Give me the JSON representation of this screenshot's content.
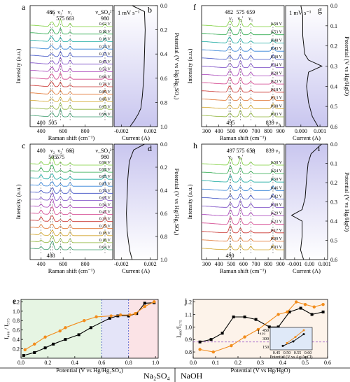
{
  "solutions": {
    "left": "Na₂SO₄",
    "right": "NaOH"
  },
  "panel_letters": [
    "a",
    "b",
    "c",
    "d",
    "e",
    "f",
    "g",
    "h",
    "i",
    "j"
  ],
  "chart_data": [
    {
      "panel": "a",
      "type": "line",
      "xlabel": "Raman shift (cm⁻¹)",
      "ylabel": "Intensity (a.u.)",
      "xticks": [
        400,
        600,
        800
      ],
      "xlim": [
        300,
        1050
      ],
      "band_labels": [
        {
          "text": "486",
          "x": 486,
          "pos": "top"
        },
        {
          "text": "ν₂",
          "x": 505,
          "pos": "top"
        },
        {
          "text": "ν₂'",
          "x": 575,
          "pos": "top"
        },
        {
          "text": "575",
          "x": 575,
          "pos": "top2"
        },
        {
          "text": "ν₁",
          "x": 663,
          "pos": "top"
        },
        {
          "text": "663",
          "x": 663,
          "pos": "top2"
        },
        {
          "text": "ν_SO₄²⁻",
          "x": 980,
          "pos": "top"
        },
        {
          "text": "980",
          "x": 980,
          "pos": "top2"
        },
        {
          "text": "400",
          "x": 400,
          "pos": "bottom"
        },
        {
          "text": "505",
          "x": 505,
          "pos": "bottom"
        }
      ],
      "potentials": [
        "0.02 V",
        "0.10 V",
        "0.18 V",
        "0.24 V",
        "0.33 V",
        "0.43 V",
        "0.52 V",
        "0.66 V",
        "0.72 V",
        "0.80 V",
        "0.86 V",
        "0.92 V",
        "0.99 V"
      ],
      "peaks": [
        486,
        505,
        575,
        663,
        980
      ]
    },
    {
      "panel": "b",
      "type": "line",
      "xlabel": "Current (A)",
      "ylabel": "Potential (V vs Hg/Hg₂SO₄)",
      "annotation": "1 mV s⁻¹",
      "xticks": [
        -0.002,
        0.002
      ],
      "xtick_labels": [
        "-0.002",
        "0.002"
      ],
      "yticks": [
        0.0,
        0.2,
        0.4,
        0.6,
        0.8,
        1.0
      ],
      "ytick_labels": [
        "0.0",
        "0.2",
        "0.4",
        "0.6",
        "0.8",
        "1.0"
      ],
      "xlim": [
        -0.003,
        0.003
      ],
      "ylim": [
        0.0,
        1.0
      ],
      "y_inverted": true,
      "x": [
        -0.0005,
        0.0012,
        0.0013,
        0.0012,
        0.0011,
        0.0009,
        0.0007,
        0.0003,
        -0.0002,
        -0.0008
      ],
      "y": [
        0.0,
        0.05,
        0.2,
        0.4,
        0.6,
        0.75,
        0.85,
        0.9,
        0.95,
        1.0
      ]
    },
    {
      "panel": "c",
      "type": "line",
      "xlabel": "Raman shift (cm⁻¹)",
      "ylabel": "Intensity (a.u.)",
      "xticks": [
        400,
        600,
        800
      ],
      "xlim": [
        300,
        1050
      ],
      "band_labels": [
        {
          "text": "400",
          "x": 400,
          "pos": "top"
        },
        {
          "text": "ν₂",
          "x": 505,
          "pos": "top"
        },
        {
          "text": "505",
          "x": 505,
          "pos": "top2"
        },
        {
          "text": "ν₂'",
          "x": 575,
          "pos": "top"
        },
        {
          "text": "575",
          "x": 575,
          "pos": "top2"
        },
        {
          "text": "663",
          "x": 663,
          "pos": "top"
        },
        {
          "text": "ν₁",
          "x": 680,
          "pos": "top"
        },
        {
          "text": "ν_SO₄²⁻",
          "x": 980,
          "pos": "top"
        },
        {
          "text": "980",
          "x": 980,
          "pos": "top2"
        },
        {
          "text": "488",
          "x": 488,
          "pos": "bottom"
        }
      ],
      "potentials": [
        "0.99 V",
        "0.92 V",
        "0.85 V",
        "0.81 V",
        "0.74 V",
        "0.67 V",
        "0.56 V",
        "0.47 V",
        "0.33 V",
        "0.29 V",
        "0.18 V",
        "0.10 V",
        "0.03 V"
      ],
      "peaks": [
        400,
        488,
        505,
        575,
        663,
        980
      ]
    },
    {
      "panel": "d",
      "type": "line",
      "xlabel": "Current (A)",
      "ylabel": "Potential (V vs Hg/Hg₂SO₄)",
      "xticks": [
        -0.002,
        0.002
      ],
      "xtick_labels": [
        "-0.002",
        "0.002"
      ],
      "yticks": [
        0.0,
        0.2,
        0.4,
        0.6,
        0.8,
        1.0
      ],
      "ytick_labels": [
        "0.0",
        "0.2",
        "0.4",
        "0.6",
        "0.8",
        "1.0"
      ],
      "xlim": [
        -0.003,
        0.003
      ],
      "ylim": [
        0.0,
        1.0
      ],
      "y_inverted": true,
      "x": [
        0.0012,
        -0.0003,
        -0.0009,
        -0.0011,
        -0.0012,
        -0.0013,
        -0.0012,
        -0.001,
        -0.0008,
        -0.0005
      ],
      "y": [
        0.0,
        0.05,
        0.15,
        0.3,
        0.45,
        0.6,
        0.75,
        0.85,
        0.93,
        1.0
      ]
    },
    {
      "panel": "e",
      "type": "line",
      "xlabel": "Potential (V vs Hg/Hg₂SO₄)",
      "ylabel": "I₄₈₀ / I₅₇₅",
      "xticks": [
        0.0,
        0.2,
        0.4,
        0.6,
        0.8,
        1.0
      ],
      "xtick_labels": [
        "0.0",
        "0.2",
        "0.4",
        "0.6",
        "0.8",
        "1.0"
      ],
      "yticks": [
        0.2,
        0.4,
        0.6,
        0.8,
        1.0,
        1.2
      ],
      "ytick_labels": [
        "0.2",
        "0.4",
        "0.6",
        "0.8",
        "1.0",
        "1.2"
      ],
      "xlim": [
        0.0,
        1.02
      ],
      "ylim": [
        0.0,
        1.25
      ],
      "regions": [
        {
          "from": 0.0,
          "to": 0.6,
          "color": "#e6f5e3"
        },
        {
          "from": 0.6,
          "to": 0.8,
          "color": "#e4e4f8"
        },
        {
          "from": 0.8,
          "to": 1.02,
          "color": "#fbe3e6"
        }
      ],
      "series": [
        {
          "color": "#000000",
          "x": [
            0.02,
            0.1,
            0.18,
            0.24,
            0.33,
            0.43,
            0.52,
            0.66,
            0.72,
            0.8,
            0.86,
            0.92,
            0.99
          ],
          "y": [
            0.06,
            0.12,
            0.22,
            0.3,
            0.4,
            0.5,
            0.65,
            0.85,
            0.9,
            0.9,
            0.95,
            1.17,
            1.18
          ]
        },
        {
          "color": "#f28c1b",
          "x": [
            0.99,
            0.92,
            0.85,
            0.81,
            0.74,
            0.67,
            0.56,
            0.47,
            0.33,
            0.29,
            0.18,
            0.1,
            0.03
          ],
          "y": [
            1.2,
            1.1,
            0.95,
            0.92,
            0.92,
            0.9,
            0.88,
            0.8,
            0.65,
            0.58,
            0.45,
            0.3,
            0.18
          ]
        }
      ]
    },
    {
      "panel": "f",
      "type": "line",
      "xlabel": "Raman shift (cm⁻¹)",
      "ylabel": "Intensity (a.u.)",
      "xticks": [
        300,
        400,
        500,
        600,
        700,
        800,
        900
      ],
      "xlim": [
        260,
        930
      ],
      "band_labels": [
        {
          "text": "482",
          "x": 482,
          "pos": "top"
        },
        {
          "text": "ν₂",
          "x": 500,
          "pos": "top2"
        },
        {
          "text": "ν₂'",
          "x": 575,
          "pos": "top2"
        },
        {
          "text": "575",
          "x": 575,
          "pos": "top"
        },
        {
          "text": "ν₁",
          "x": 659,
          "pos": "top2"
        },
        {
          "text": "659",
          "x": 659,
          "pos": "top"
        },
        {
          "text": "495",
          "x": 495,
          "pos": "bottom"
        },
        {
          "text": "839 ν₃",
          "x": 839,
          "pos": "bottom"
        }
      ],
      "potentials": [
        "0.58 V",
        "0.53 V",
        "0.48 V",
        "0.43 V",
        "0.38 V",
        "0.34 V",
        "0.28 V",
        "0.23 V",
        "0.18 V",
        "0.13 V",
        "0.08 V",
        "0.03 V"
      ],
      "peaks": [
        482,
        495,
        575,
        659,
        839
      ]
    },
    {
      "panel": "g",
      "type": "line",
      "xlabel": "Current (A)",
      "ylabel": "Potential (V vs Hg/HgO)",
      "annotation": "1 mV s⁻¹",
      "xticks": [
        0.0,
        0.001
      ],
      "xtick_labels": [
        "0.000",
        "0.001"
      ],
      "yticks": [
        0.0,
        0.1,
        0.2,
        0.3,
        0.4,
        0.5,
        0.6
      ],
      "ytick_labels": [
        "0.0",
        "0.1",
        "0.2",
        "0.3",
        "0.4",
        "0.5",
        "0.6"
      ],
      "xlim": [
        -0.0008,
        0.0014
      ],
      "ylim": [
        0.0,
        0.6
      ],
      "y_inverted": true,
      "x": [
        0.0,
        0.0001,
        0.0001,
        0.0002,
        0.0004,
        0.0011,
        0.0004,
        0.0003,
        0.0004,
        0.0006,
        0.0009
      ],
      "y": [
        0.0,
        0.05,
        0.15,
        0.24,
        0.27,
        0.3,
        0.33,
        0.4,
        0.48,
        0.55,
        0.6
      ]
    },
    {
      "panel": "h",
      "type": "line",
      "xlabel": "Raman shift (cm⁻¹)",
      "ylabel": "Intensity (a.u.)",
      "xticks": [
        300,
        400,
        500,
        600,
        700,
        800,
        900
      ],
      "xlim": [
        260,
        930
      ],
      "band_labels": [
        {
          "text": "ν₂",
          "x": 495,
          "pos": "top2"
        },
        {
          "text": "497",
          "x": 497,
          "pos": "top"
        },
        {
          "text": "ν₂'",
          "x": 575,
          "pos": "top2"
        },
        {
          "text": "575",
          "x": 575,
          "pos": "top"
        },
        {
          "text": "659",
          "x": 659,
          "pos": "top"
        },
        {
          "text": "ν₁",
          "x": 680,
          "pos": "top"
        },
        {
          "text": "839 ν₃",
          "x": 839,
          "pos": "top"
        },
        {
          "text": "490",
          "x": 490,
          "pos": "bottom"
        }
      ],
      "potentials": [
        "0.58 V",
        "0.54 V",
        "0.50 V",
        "0.46 V",
        "0.42 V",
        "0.38 V",
        "0.29 V",
        "0.23 V",
        "0.17 V",
        "0.09 V",
        "0.03 V"
      ],
      "peaks": [
        490,
        497,
        575,
        659,
        839
      ]
    },
    {
      "panel": "i",
      "type": "line",
      "xlabel": "Current (A)",
      "ylabel": "Potential (V vs Hg/HgO)",
      "xticks": [
        -0.001,
        0.0,
        0.001
      ],
      "xtick_labels": [
        "-0.001",
        "0.00",
        "0.001"
      ],
      "yticks": [
        0.0,
        0.1,
        0.2,
        0.3,
        0.4,
        0.5,
        0.6
      ],
      "ytick_labels": [
        "0.0",
        "0.1",
        "0.2",
        "0.3",
        "0.4",
        "0.5",
        "0.6"
      ],
      "xlim": [
        -0.0016,
        0.0012
      ],
      "ylim": [
        0.0,
        0.6
      ],
      "y_inverted": true,
      "x": [
        0.0008,
        0.0001,
        -0.0001,
        -0.0002,
        -0.0003,
        -0.0005,
        -0.0012,
        -0.0005,
        -0.0005,
        -0.0006,
        -0.0004
      ],
      "y": [
        0.0,
        0.05,
        0.1,
        0.18,
        0.28,
        0.34,
        0.37,
        0.4,
        0.48,
        0.55,
        0.6
      ]
    },
    {
      "panel": "j",
      "type": "line",
      "xlabel": "Potential (V vs Hg/HgO)",
      "ylabel": "I₄₈₀/I₅₇₅",
      "xticks": [
        0.0,
        0.1,
        0.2,
        0.3,
        0.4,
        0.5,
        0.6
      ],
      "xtick_labels": [
        "0.0",
        "0.1",
        "0.2",
        "0.3",
        "0.4",
        "0.5",
        "0.6"
      ],
      "yticks": [
        0.8,
        0.9,
        1.0,
        1.1,
        1.2
      ],
      "ytick_labels": [
        "0.8",
        "0.9",
        "1.0",
        "1.1",
        "1.2"
      ],
      "xlim": [
        0.0,
        0.6
      ],
      "ylim": [
        0.75,
        1.22
      ],
      "reference_y": 0.88,
      "series": [
        {
          "color": "#000000",
          "x": [
            0.03,
            0.08,
            0.13,
            0.18,
            0.23,
            0.28,
            0.34,
            0.38,
            0.43,
            0.48,
            0.53,
            0.58
          ],
          "y": [
            0.88,
            0.9,
            0.95,
            1.08,
            1.08,
            1.06,
            1.0,
            1.0,
            1.12,
            1.15,
            1.1,
            1.12
          ]
        },
        {
          "color": "#f28c1b",
          "x": [
            0.58,
            0.54,
            0.5,
            0.46,
            0.42,
            0.38,
            0.29,
            0.23,
            0.17,
            0.09,
            0.03
          ],
          "y": [
            1.18,
            1.16,
            1.18,
            1.2,
            1.12,
            1.1,
            0.98,
            0.92,
            0.85,
            0.8,
            0.82
          ]
        }
      ],
      "inset": {
        "ylabel": "I₈₃₉",
        "xlabel": "Potential (V vs Ag/AgCl)",
        "xticks": [
          0.45,
          0.5,
          0.55,
          0.6
        ],
        "xtick_labels": [
          "0.45",
          "0.50",
          "0.55",
          "0.60"
        ],
        "yticks": [
          150,
          300,
          450
        ],
        "ytick_labels": [
          "150",
          "300",
          "450"
        ],
        "xlim": [
          0.42,
          0.62
        ],
        "ylim": [
          100,
          500
        ],
        "series": [
          {
            "color": "#000000",
            "x": [
              0.48,
              0.53,
              0.58
            ],
            "y": [
              170,
              250,
              380
            ]
          },
          {
            "color": "#f28c1b",
            "x": [
              0.58,
              0.54,
              0.5
            ],
            "y": [
              450,
              330,
              220
            ]
          }
        ]
      }
    }
  ]
}
